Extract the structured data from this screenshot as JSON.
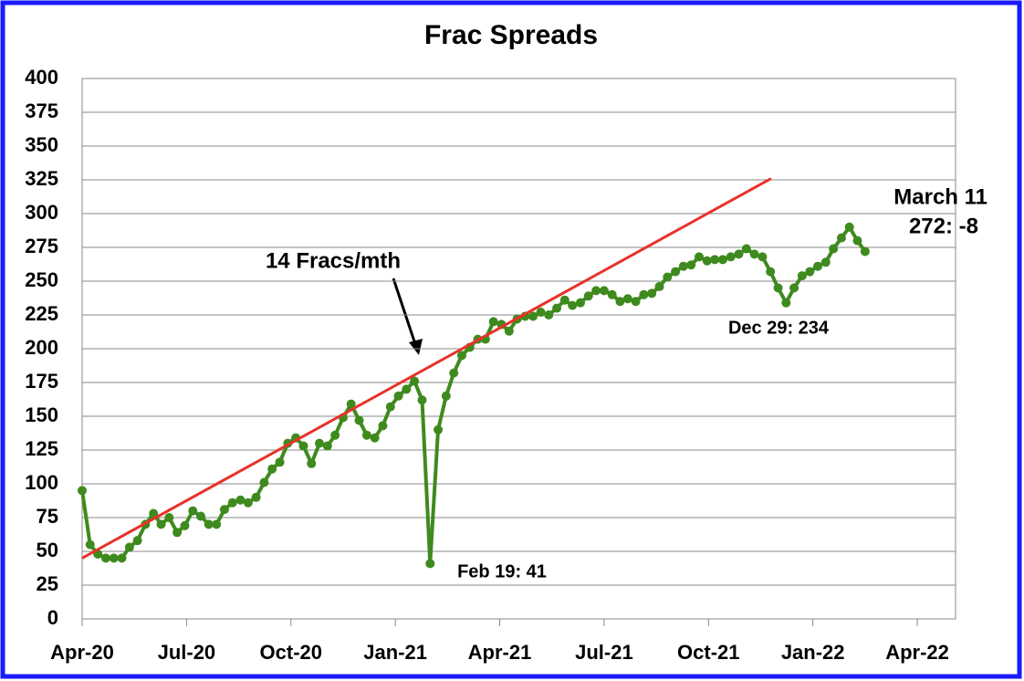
{
  "chart_data": {
    "type": "line",
    "title": "Frac Spreads",
    "xlim": [
      0,
      25.1
    ],
    "xticks": [
      {
        "value": 0,
        "label": "Apr-20"
      },
      {
        "value": 3,
        "label": "Jul-20"
      },
      {
        "value": 6,
        "label": "Oct-20"
      },
      {
        "value": 9,
        "label": "Jan-21"
      },
      {
        "value": 12,
        "label": "Apr-21"
      },
      {
        "value": 15,
        "label": "Jul-21"
      },
      {
        "value": 18,
        "label": "Oct-21"
      },
      {
        "value": 21,
        "label": "Jan-22"
      },
      {
        "value": 24,
        "label": "Apr-22"
      }
    ],
    "ylim": [
      0,
      400
    ],
    "yticks": [
      0,
      25,
      50,
      75,
      100,
      125,
      150,
      175,
      200,
      225,
      250,
      275,
      300,
      325,
      350,
      375,
      400
    ],
    "grid": true,
    "series": [
      {
        "color": "#3f8a1e",
        "markers": true,
        "x": [
          0,
          0.23,
          0.45,
          0.68,
          0.91,
          1.14,
          1.36,
          1.59,
          1.82,
          2.05,
          2.27,
          2.5,
          2.73,
          2.95,
          3.18,
          3.41,
          3.64,
          3.86,
          4.09,
          4.32,
          4.55,
          4.77,
          5.0,
          5.23,
          5.46,
          5.68,
          5.91,
          6.14,
          6.36,
          6.59,
          6.82,
          7.05,
          7.27,
          7.5,
          7.73,
          7.96,
          8.18,
          8.41,
          8.64,
          8.86,
          9.09,
          9.32,
          9.55,
          9.77,
          10.0,
          10.23,
          10.46,
          10.68,
          10.91,
          11.14,
          11.37,
          11.59,
          11.82,
          12.05,
          12.27,
          12.5,
          12.73,
          12.96,
          13.18,
          13.41,
          13.64,
          13.87,
          14.09,
          14.32,
          14.55,
          14.77,
          15.0,
          15.23,
          15.46,
          15.68,
          15.91,
          16.14,
          16.37,
          16.59,
          16.82,
          17.05,
          17.28,
          17.5,
          17.73,
          17.96,
          18.18,
          18.41,
          18.64,
          18.87,
          19.09,
          19.32,
          19.55,
          19.78,
          20.0,
          20.23,
          20.46,
          20.69,
          20.91,
          21.14,
          21.37,
          21.59,
          21.82,
          22.05,
          22.28,
          22.5
        ],
        "values": [
          95,
          55,
          48,
          45,
          45,
          45,
          53,
          58,
          70,
          78,
          70,
          75,
          64,
          69,
          80,
          76,
          70,
          70,
          81,
          86,
          88,
          86,
          90,
          101,
          111,
          116,
          130,
          134,
          128,
          115,
          130,
          128,
          136,
          149,
          159,
          147,
          136,
          134,
          143,
          157,
          165,
          170,
          176,
          162,
          41,
          140,
          165,
          182,
          195,
          201,
          207,
          207,
          220,
          218,
          213,
          222,
          224,
          224,
          227,
          225,
          230,
          236,
          232,
          234,
          239,
          243,
          243,
          240,
          235,
          237,
          235,
          240,
          241,
          246,
          253,
          257,
          261,
          262,
          268,
          265,
          266,
          266,
          268,
          270,
          274,
          270,
          268,
          257,
          245,
          234,
          245,
          254,
          257,
          261,
          264,
          274,
          282,
          290,
          280,
          272
        ]
      },
      {
        "color": "#e8322a",
        "markers": false,
        "x": [
          0,
          19.8
        ],
        "values": [
          45,
          326
        ]
      }
    ],
    "annotations": [
      "14 Fracs/mth",
      "Feb 19: 41",
      "Dec 29: 234",
      "March 11",
      "272: -8"
    ]
  }
}
